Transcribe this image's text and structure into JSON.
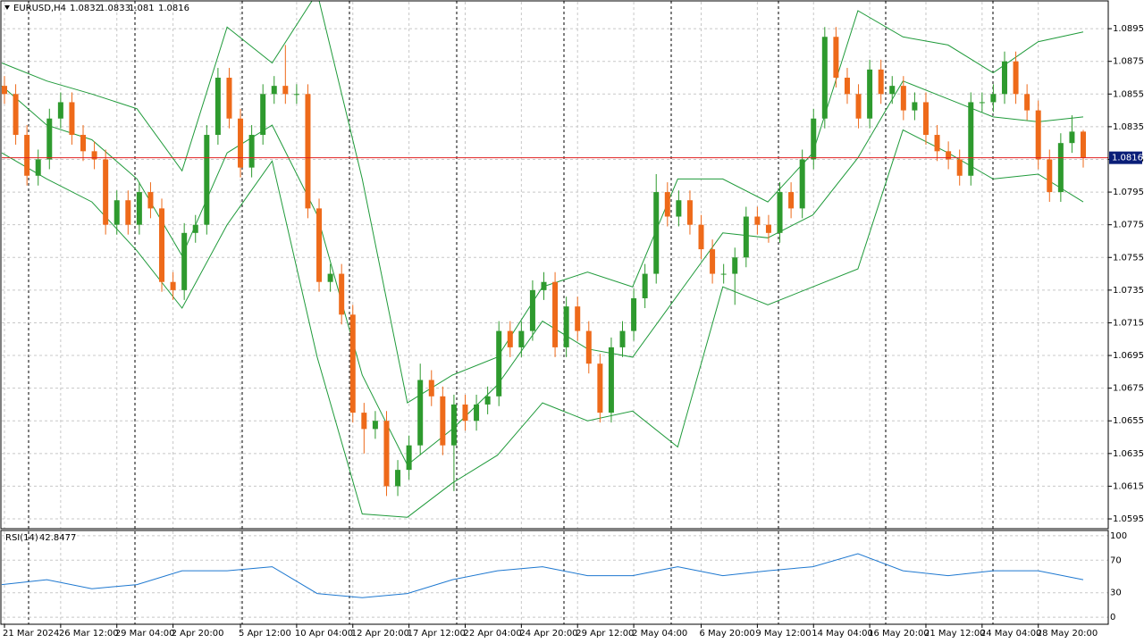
{
  "chart_data": {
    "type": "candlestick",
    "symbol": "EURUSD,H4",
    "up_color": "#2e9a2e",
    "down_color": "#ee6a1a",
    "band_color": "#1f9a3a",
    "price_line_color": "#e02020",
    "grid": true,
    "open": [
      1.086,
      1.0855,
      1.083,
      1.0805,
      1.0815,
      1.084,
      1.085,
      1.083,
      1.082,
      1.0815,
      1.0775,
      1.079,
      1.0775,
      1.0795,
      1.0785,
      1.074,
      1.0735,
      1.077,
      1.0775,
      1.083,
      1.0865,
      1.084,
      1.081,
      1.083,
      1.0855,
      1.086,
      1.0855,
      1.0855,
      1.0785,
      1.074,
      1.0745,
      1.072,
      1.066,
      1.065,
      1.0655,
      1.0615,
      1.0625,
      1.064,
      1.068,
      1.067,
      1.064,
      1.0665,
      1.0655,
      1.0665,
      1.067,
      1.071,
      1.07,
      1.071,
      1.0735,
      1.074,
      1.07,
      1.0725,
      1.071,
      1.069,
      1.066,
      1.07,
      1.071,
      1.073,
      1.0745,
      1.0795,
      1.078,
      1.079,
      1.0775,
      1.076,
      1.0745,
      1.0745,
      1.0755,
      1.078,
      1.0775,
      1.077,
      1.0795,
      1.0785,
      1.0815,
      1.084,
      1.089,
      1.0865,
      1.0855,
      1.084,
      1.087,
      1.0855,
      1.086,
      1.0845,
      1.085,
      1.083,
      1.082,
      1.0815,
      1.0805,
      1.085,
      1.085,
      1.0855,
      1.0875,
      1.0855,
      1.0845,
      1.0815,
      1.0795,
      1.0825,
      1.0832
    ],
    "high": [
      1.0866,
      1.0861,
      1.0836,
      1.0821,
      1.0846,
      1.0856,
      1.0856,
      1.0836,
      1.0826,
      1.0821,
      1.0796,
      1.0796,
      1.0801,
      1.0801,
      1.0791,
      1.0746,
      1.0776,
      1.0781,
      1.0836,
      1.0871,
      1.0871,
      1.0846,
      1.0836,
      1.0861,
      1.0866,
      1.0885,
      1.0861,
      1.0861,
      1.0791,
      1.0751,
      1.0751,
      1.0726,
      1.0666,
      1.0661,
      1.0661,
      1.0631,
      1.0646,
      1.069,
      1.0686,
      1.0676,
      1.0671,
      1.0671,
      1.0671,
      1.0676,
      1.0716,
      1.0716,
      1.0716,
      1.0741,
      1.0746,
      1.0746,
      1.0731,
      1.0731,
      1.0716,
      1.0696,
      1.0706,
      1.0716,
      1.0736,
      1.0751,
      1.0806,
      1.0801,
      1.0796,
      1.0796,
      1.0781,
      1.0766,
      1.0751,
      1.0761,
      1.0786,
      1.0786,
      1.0781,
      1.0801,
      1.0801,
      1.0821,
      1.0846,
      1.0896,
      1.0896,
      1.0871,
      1.0861,
      1.0876,
      1.0876,
      1.0866,
      1.0866,
      1.0856,
      1.0856,
      1.0836,
      1.0826,
      1.0821,
      1.0856,
      1.0856,
      1.0861,
      1.0881,
      1.0881,
      1.0861,
      1.0851,
      1.0821,
      1.0831,
      1.0842,
      1.0833
    ],
    "low": [
      1.0849,
      1.0824,
      1.0799,
      1.0799,
      1.0809,
      1.0834,
      1.0824,
      1.0814,
      1.0809,
      1.0769,
      1.0769,
      1.0769,
      1.0769,
      1.0779,
      1.0734,
      1.0729,
      1.0729,
      1.0764,
      1.0769,
      1.0824,
      1.0834,
      1.0804,
      1.0804,
      1.0824,
      1.0849,
      1.0849,
      1.0849,
      1.0779,
      1.0734,
      1.0734,
      1.0714,
      1.0654,
      1.0635,
      1.0644,
      1.0609,
      1.0609,
      1.0619,
      1.0634,
      1.0664,
      1.0634,
      1.0612,
      1.0649,
      1.0649,
      1.0659,
      1.0664,
      1.0694,
      1.0694,
      1.0704,
      1.0729,
      1.0694,
      1.0694,
      1.0704,
      1.0684,
      1.0654,
      1.0654,
      1.0694,
      1.0704,
      1.0724,
      1.0739,
      1.0774,
      1.0774,
      1.0769,
      1.0754,
      1.0739,
      1.0739,
      1.0726,
      1.0749,
      1.0769,
      1.0764,
      1.0764,
      1.0779,
      1.0779,
      1.0809,
      1.0834,
      1.0859,
      1.0849,
      1.0834,
      1.0834,
      1.0849,
      1.0849,
      1.0839,
      1.0839,
      1.0824,
      1.0814,
      1.0809,
      1.0799,
      1.0799,
      1.0844,
      1.0844,
      1.0849,
      1.0849,
      1.0839,
      1.0809,
      1.0789,
      1.0789,
      1.0819,
      1.081
    ],
    "close": [
      1.0855,
      1.083,
      1.0805,
      1.0815,
      1.084,
      1.085,
      1.083,
      1.082,
      1.0815,
      1.0775,
      1.079,
      1.0775,
      1.0795,
      1.0785,
      1.074,
      1.0735,
      1.077,
      1.0775,
      1.083,
      1.0865,
      1.084,
      1.081,
      1.083,
      1.0855,
      1.086,
      1.0855,
      1.0855,
      1.0785,
      1.074,
      1.0745,
      1.072,
      1.066,
      1.065,
      1.0655,
      1.0615,
      1.0625,
      1.064,
      1.068,
      1.067,
      1.064,
      1.0665,
      1.0655,
      1.0665,
      1.067,
      1.071,
      1.07,
      1.071,
      1.0735,
      1.074,
      1.07,
      1.0725,
      1.071,
      1.069,
      1.066,
      1.07,
      1.071,
      1.073,
      1.0745,
      1.0795,
      1.078,
      1.079,
      1.0775,
      1.076,
      1.0745,
      1.0745,
      1.0755,
      1.078,
      1.0775,
      1.077,
      1.0795,
      1.0785,
      1.0815,
      1.084,
      1.089,
      1.0865,
      1.0855,
      1.084,
      1.087,
      1.0855,
      1.086,
      1.0845,
      1.085,
      1.083,
      1.082,
      1.0815,
      1.0805,
      1.085,
      1.085,
      1.0855,
      1.0875,
      1.0855,
      1.0845,
      1.0815,
      1.0795,
      1.0825,
      1.0832,
      1.0816
    ],
    "bands": [
      {
        "color": "#1f9a3a",
        "values": [
          1.0874,
          1.0863,
          1.0855,
          1.0846,
          1.0808,
          1.0896,
          1.0874,
          1.0917,
          1.0803,
          1.0666,
          1.0683,
          1.0694,
          1.0737,
          1.0746,
          1.0737,
          1.0803,
          1.0803,
          1.0789,
          1.0819,
          1.0906,
          1.089,
          1.0885,
          1.0868,
          1.0887,
          1.0893
        ]
      },
      {
        "color": "#1f9a3a",
        "values": [
          1.086,
          1.0836,
          1.0827,
          1.0803,
          1.0756,
          1.0819,
          1.0836,
          1.0781,
          1.0683,
          1.0628,
          1.065,
          1.0677,
          1.0716,
          1.0699,
          1.0694,
          1.0732,
          1.077,
          1.0767,
          1.0781,
          1.0816,
          1.0863,
          1.0852,
          1.0841,
          1.0838,
          1.0841
        ]
      },
      {
        "color": "#1f9a3a",
        "values": [
          1.0819,
          1.0803,
          1.0789,
          1.0759,
          1.0724,
          1.0775,
          1.0814,
          1.0694,
          1.0598,
          1.0596,
          1.0617,
          1.0634,
          1.0666,
          1.0655,
          1.0661,
          1.0639,
          1.0737,
          1.0726,
          1.0737,
          1.0748,
          1.0833,
          1.0819,
          1.0803,
          1.0806,
          1.0789
        ]
      }
    ],
    "ylim": [
      1.0589,
      1.0912
    ],
    "yticks": [
      1.0895,
      1.0875,
      1.0855,
      1.0835,
      1.0815,
      1.0795,
      1.0775,
      1.0755,
      1.0735,
      1.0715,
      1.0695,
      1.0675,
      1.0655,
      1.0635,
      1.0615,
      1.0595
    ],
    "xticks": [
      {
        "value": 0,
        "label": "21 Mar 2024"
      },
      {
        "value": 5,
        "label": "26 Mar 12:00"
      },
      {
        "value": 10,
        "label": "29 Mar 04:00"
      },
      {
        "value": 15,
        "label": "2 Apr 20:00"
      },
      {
        "value": 21,
        "label": "5 Apr 12:00"
      },
      {
        "value": 26,
        "label": "10 Apr 04:00"
      },
      {
        "value": 31,
        "label": "12 Apr 20:00"
      },
      {
        "value": 36,
        "label": "17 Apr 12:00"
      },
      {
        "value": 41,
        "label": "22 Apr 04:00"
      },
      {
        "value": 46,
        "label": "24 Apr 20:00"
      },
      {
        "value": 51,
        "label": "29 Apr 12:00"
      },
      {
        "value": 56,
        "label": "2 May 04:00"
      },
      {
        "value": 62,
        "label": "6 May 20:00"
      },
      {
        "value": 67,
        "label": "9 May 12:00"
      },
      {
        "value": 72,
        "label": "14 May 04:00"
      },
      {
        "value": 77,
        "label": "16 May 20:00"
      },
      {
        "value": 82,
        "label": "21 May 12:00"
      },
      {
        "value": 87,
        "label": "24 May 04:00"
      },
      {
        "value": 92,
        "label": "28 May 20:00"
      }
    ],
    "rsi": {
      "label": "RSI(14)",
      "value": 42.8477,
      "color": "#1e78d0",
      "values": [
        40,
        46,
        35,
        40,
        57,
        57,
        62,
        29,
        24,
        29,
        46,
        57,
        62,
        51,
        51,
        62,
        51,
        57,
        62,
        78,
        57,
        51,
        57,
        57,
        46
      ],
      "ylim": [
        -8.7,
        106.5
      ],
      "yticks": [
        100,
        70,
        30,
        0
      ]
    }
  }
}
